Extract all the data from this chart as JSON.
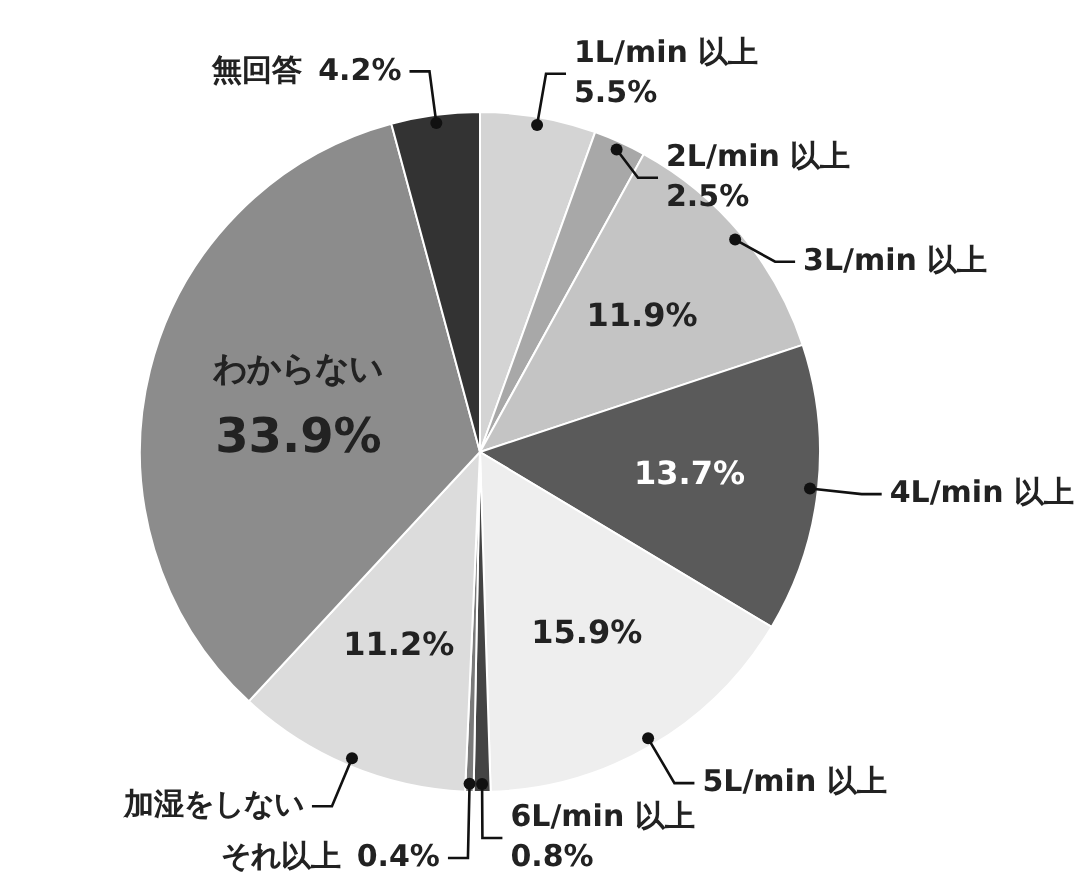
{
  "chart_data": {
    "type": "pie",
    "categories": [
      "1L/min 以上",
      "2L/min 以上",
      "3L/min 以上",
      "4L/min 以上",
      "5L/min 以上",
      "6L/min 以上",
      "それ以上",
      "加湿をしない",
      "わからない",
      "無回答"
    ],
    "values": [
      5.5,
      2.5,
      11.9,
      13.7,
      15.9,
      0.8,
      0.4,
      11.2,
      33.9,
      4.2
    ],
    "colors": [
      "#d4d4d4",
      "#a8a8a8",
      "#c4c4c4",
      "#5a5a5a",
      "#eeeeee",
      "#444444",
      "#7a7a7a",
      "#dcdcdc",
      "#8c8c8c",
      "#333333"
    ],
    "value_labels": [
      "5.5%",
      "2.5%",
      "11.9%",
      "13.7%",
      "15.9%",
      "0.8%",
      "0.4%",
      "11.2%",
      "33.9%",
      "4.2%"
    ]
  }
}
